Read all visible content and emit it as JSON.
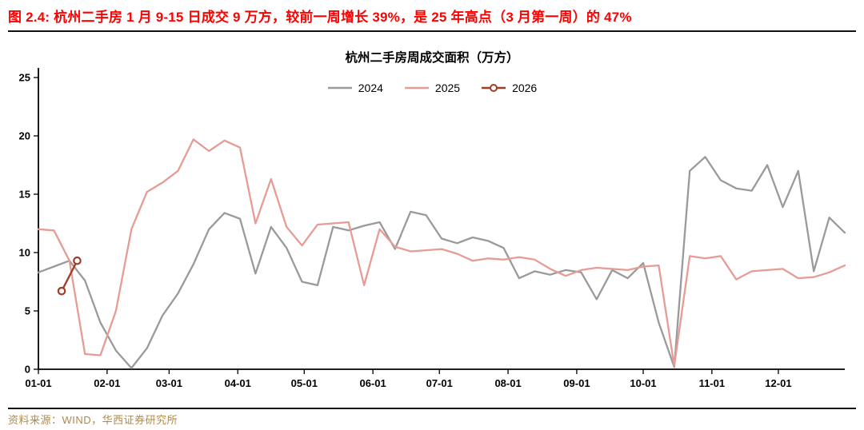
{
  "header": {
    "title": "图 2.4:  杭州二手房 1 月 9-15 日成交 9 万方，较前一周增长 39%，是 25 年高点（3 月第一周）的 47%"
  },
  "chart_data": {
    "type": "line",
    "title": "杭州二手房周成交面积（万方）",
    "ylim": [
      0,
      25
    ],
    "yticks": [
      0,
      5,
      10,
      15,
      20,
      25
    ],
    "xticklabels": [
      "01-01",
      "02-01",
      "03-01",
      "04-01",
      "05-01",
      "06-01",
      "07-01",
      "08-01",
      "09-01",
      "10-01",
      "11-01",
      "12-01"
    ],
    "x_unit": "weekly (month-day)",
    "grid": false,
    "legend_position": "top-center",
    "series": [
      {
        "name": "2024",
        "color": "#9a9a9a",
        "marker": "none",
        "offset": 0,
        "values": [
          8.3,
          8.8,
          9.3,
          7.6,
          4.0,
          1.6,
          0.1,
          1.8,
          4.6,
          6.5,
          9.0,
          12.0,
          13.4,
          12.9,
          8.2,
          12.2,
          10.4,
          7.5,
          7.2,
          12.2,
          11.9,
          12.3,
          12.6,
          10.3,
          13.5,
          13.2,
          11.2,
          10.8,
          11.3,
          11.0,
          10.4,
          7.8,
          8.4,
          8.1,
          8.5,
          8.3,
          6.0,
          8.5,
          7.8,
          9.1,
          4.0,
          0.2,
          17.0,
          18.2,
          16.2,
          15.5,
          15.3,
          17.5,
          13.9,
          17.0,
          8.4,
          13.0,
          11.7
        ]
      },
      {
        "name": "2025",
        "color": "#e69c94",
        "marker": "none",
        "offset": 0,
        "values": [
          12.0,
          11.9,
          9.3,
          1.3,
          1.2,
          5.0,
          12.0,
          15.2,
          16.0,
          17.0,
          19.7,
          18.7,
          19.6,
          19.0,
          12.5,
          16.3,
          12.2,
          10.6,
          12.4,
          12.5,
          12.6,
          7.2,
          12.0,
          10.5,
          10.1,
          10.2,
          10.3,
          9.9,
          9.3,
          9.5,
          9.4,
          9.6,
          9.4,
          8.6,
          8.0,
          8.5,
          8.7,
          8.6,
          8.5,
          8.8,
          8.9,
          0.3,
          9.7,
          9.5,
          9.7,
          7.7,
          8.4,
          8.5,
          8.6,
          7.8,
          7.9,
          8.3,
          8.9
        ]
      },
      {
        "name": "2026",
        "color": "#a13d23",
        "marker": "circle",
        "offset": 1.5,
        "values": [
          6.7,
          9.3
        ]
      }
    ]
  },
  "footer": {
    "source": "资料来源：WIND，华西证券研究所"
  },
  "colors": {
    "title_red": "#ff0000",
    "source_gold": "#af8a4a",
    "axis_black": "#000000"
  }
}
